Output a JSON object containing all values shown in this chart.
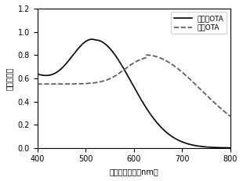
{
  "title": "",
  "xlabel": "紫外吸收波长（nm）",
  "ylabel": "紫外吸收值",
  "xlim": [
    400,
    800
  ],
  "ylim": [
    0,
    1.2
  ],
  "xticks": [
    400,
    500,
    600,
    700,
    800
  ],
  "yticks": [
    0.0,
    0.2,
    0.4,
    0.6,
    0.8,
    1.0,
    1.2
  ],
  "legend1": "未添加OTA",
  "legend2": "添加OTA",
  "line1_color": "#000000",
  "line2_color": "#555555",
  "background_color": "#ffffff"
}
